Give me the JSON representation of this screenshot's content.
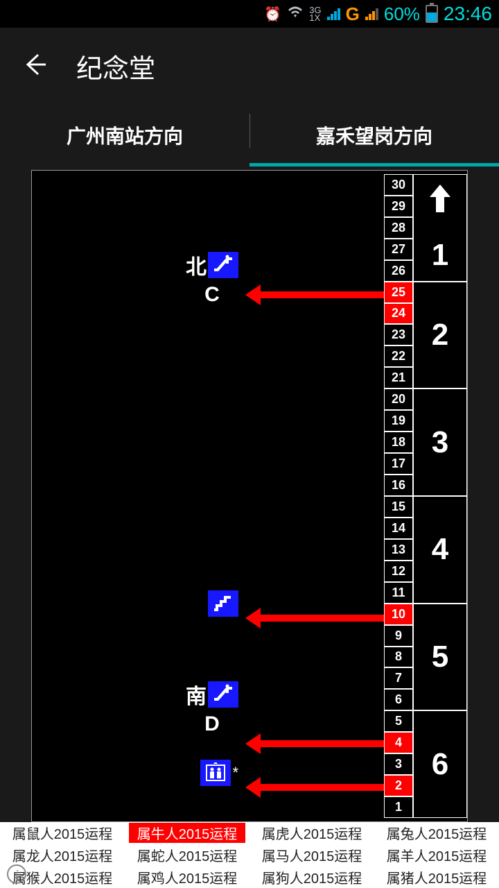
{
  "status": {
    "network": "3G\n1X",
    "carrier": "G",
    "battery_pct": "60%",
    "battery_fill_pct": 60,
    "time": "23:46",
    "accent": "#00dddd"
  },
  "header": {
    "title": "纪念堂"
  },
  "tabs": {
    "left": "广州南站方向",
    "right": "嘉禾望岗方向",
    "active": "right"
  },
  "diagram": {
    "door_max": 30,
    "highlighted_doors": [
      2,
      4,
      10,
      24,
      25
    ],
    "cars": [
      "1",
      "2",
      "3",
      "4",
      "5",
      "6"
    ],
    "exits": [
      {
        "top_pct": 16.5,
        "dir": "北",
        "letter": "C",
        "icon": "escalator"
      },
      {
        "top_pct": 66.5,
        "dir": "",
        "letter": "",
        "icon": "stairs"
      },
      {
        "top_pct": 82.5,
        "dir": "南",
        "letter": "D",
        "icon": "escalator"
      },
      {
        "top_pct": 92.5,
        "dir": "",
        "letter": "",
        "icon": "elevator",
        "suffix": "*"
      }
    ],
    "arrows": [
      {
        "top_pct": 18.5
      },
      {
        "top_pct": 68.2
      },
      {
        "top_pct": 87.5
      },
      {
        "top_pct": 94.2
      }
    ]
  },
  "ads": {
    "items": [
      "属鼠人2015运程",
      "属牛人2015运程",
      "属虎人2015运程",
      "属兔人2015运程",
      "属龙人2015运程",
      "属蛇人2015运程",
      "属马人2015运程",
      "属羊人2015运程",
      "属猴人2015运程",
      "属鸡人2015运程",
      "属狗人2015运程",
      "属猪人2015运程"
    ],
    "highlight_index": 1
  }
}
